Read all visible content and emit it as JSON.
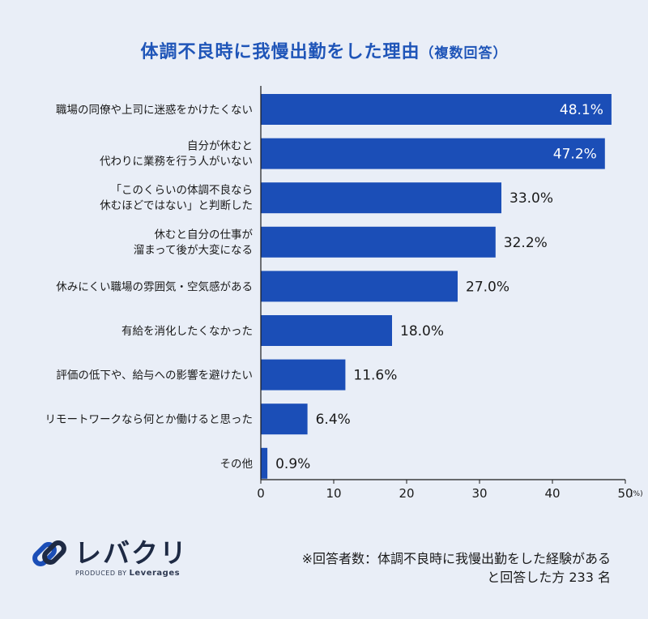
{
  "chart_title": "体調不良時に我慢出勤をした理由",
  "chart_subtitle": "（複数回答）",
  "chart_data": {
    "type": "bar",
    "orientation": "horizontal",
    "title": "体調不良時に我慢出勤をした理由（複数回答）",
    "categories": [
      [
        "職場の同僚や上司に迷惑をかけたくない"
      ],
      [
        "自分が休むと",
        "代わりに業務を行う人がいない"
      ],
      [
        "「このくらいの体調不良なら",
        "休むほどではない」と判断した"
      ],
      [
        "休むと自分の仕事が",
        "溜まって後が大変になる"
      ],
      [
        "休みにくい職場の雰囲気・空気感がある"
      ],
      [
        "有給を消化したくなかった"
      ],
      [
        "評価の低下や、給与への影響を避けたい"
      ],
      [
        "リモートワークなら何とか働けると思った"
      ],
      [
        "その他"
      ]
    ],
    "values": [
      48.1,
      47.2,
      33.0,
      32.2,
      27.0,
      18.0,
      11.6,
      6.4,
      0.9
    ],
    "value_labels": [
      "48.1%",
      "47.2%",
      "33.0%",
      "32.2%",
      "27.0%",
      "18.0%",
      "11.6%",
      "6.4%",
      "0.9%"
    ],
    "xlim": [
      0,
      50
    ],
    "xticks": [
      "0",
      "10",
      "20",
      "30",
      "40",
      "50"
    ],
    "xunit": "(%)",
    "bar_color": "#1b4eb7",
    "grid": false
  },
  "logo": {
    "brand": "レバクリ",
    "produced_by": "PRODUCED BY",
    "company": "Leverages"
  },
  "footnote": {
    "line1": "※回答者数：体調不良時に我慢出勤をした経験がある",
    "line2": "と回答した方 233 名"
  },
  "colors": {
    "background": "#e9eef7",
    "title": "#1f55b8",
    "bar": "#1b4eb7"
  }
}
